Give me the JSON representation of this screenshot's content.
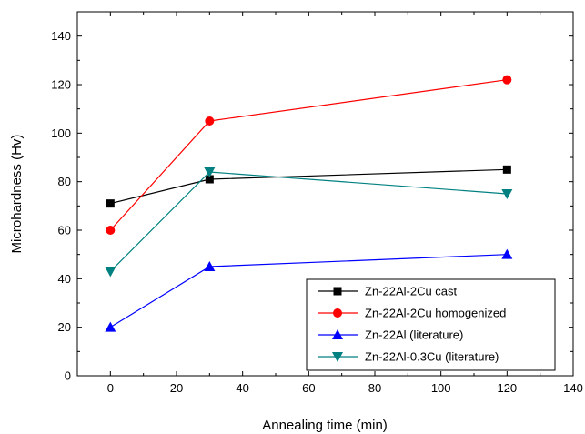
{
  "chart_data": {
    "type": "line",
    "xlabel": "Annealing time (min)",
    "ylabel": "Microhardness (Hv)",
    "xlim": [
      -10,
      140
    ],
    "ylim": [
      0,
      150
    ],
    "xticks": [
      0,
      20,
      40,
      60,
      80,
      100,
      120,
      140
    ],
    "yticks": [
      0,
      20,
      40,
      60,
      80,
      100,
      120,
      140
    ],
    "grid": false,
    "legend_position": "bottom-right",
    "series": [
      {
        "name": "Zn-22Al-2Cu cast",
        "color": "#000000",
        "marker": "square",
        "x": [
          0,
          30,
          120
        ],
        "y": [
          71,
          81,
          85
        ]
      },
      {
        "name": "Zn-22Al-2Cu homogenized",
        "color": "#ff0000",
        "marker": "circle",
        "x": [
          0,
          30,
          120
        ],
        "y": [
          60,
          105,
          122
        ]
      },
      {
        "name": "Zn-22Al (literature)",
        "color": "#0000ff",
        "marker": "triangle-up",
        "x": [
          0,
          30,
          120
        ],
        "y": [
          20,
          45,
          50
        ]
      },
      {
        "name": "Zn-22Al-0.3Cu (literature)",
        "color": "#008080",
        "marker": "triangle-down",
        "x": [
          0,
          30,
          120
        ],
        "y": [
          43,
          84,
          75
        ]
      }
    ]
  }
}
